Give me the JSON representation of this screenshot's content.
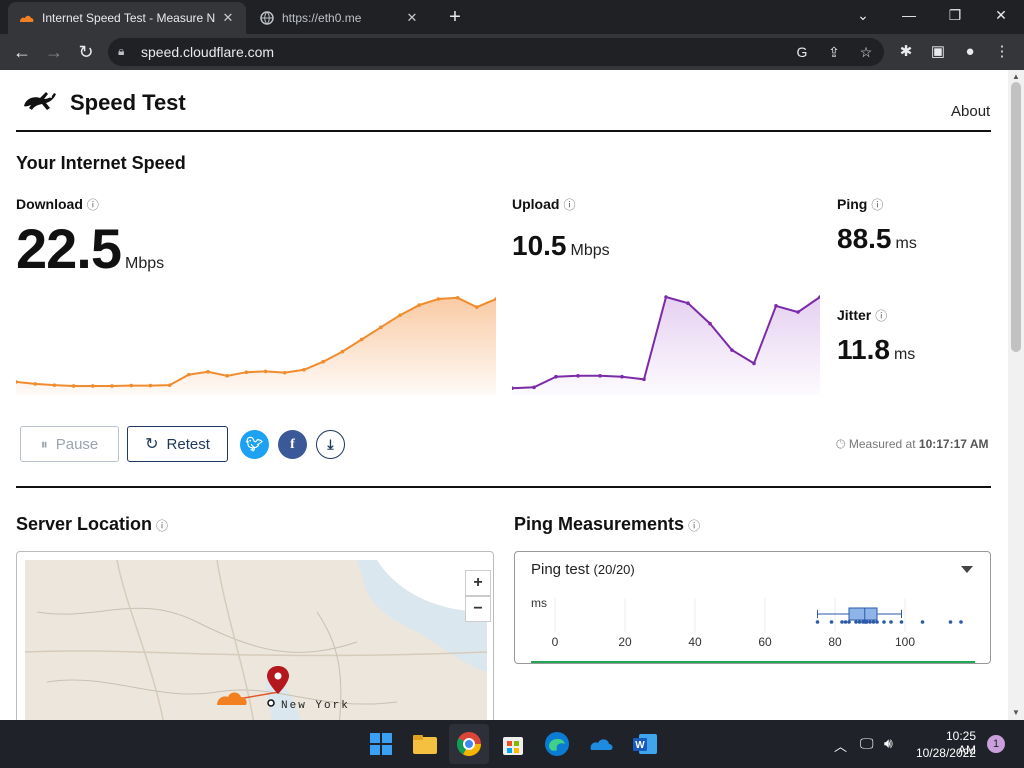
{
  "browser": {
    "tabs": [
      {
        "title": "Internet Speed Test - Measure N",
        "icon": "cloudflare-icon",
        "active": true
      },
      {
        "title": "https://eth0.me",
        "icon": "globe-icon",
        "active": false
      }
    ],
    "url": "speed.cloudflare.com"
  },
  "site": {
    "title": "Speed Test",
    "nav_about": "About"
  },
  "speed": {
    "heading": "Your Internet Speed",
    "download": {
      "label": "Download",
      "value": "22.5",
      "unit": "Mbps"
    },
    "upload": {
      "label": "Upload",
      "value": "10.5",
      "unit": "Mbps"
    },
    "ping": {
      "label": "Ping",
      "value": "88.5",
      "unit": "ms"
    },
    "jitter": {
      "label": "Jitter",
      "value": "11.8",
      "unit": "ms"
    },
    "pause_label": "Pause",
    "retest_label": "Retest",
    "measured_prefix": "Measured at",
    "measured_time": "10:17:17 AM"
  },
  "server": {
    "heading": "Server Location",
    "city": "New York"
  },
  "ping_measurements": {
    "heading": "Ping Measurements",
    "select_label": "Ping test",
    "select_count": "(20/20)",
    "unit_label": "ms",
    "ticks": [
      "0",
      "20",
      "40",
      "60",
      "80",
      "100"
    ]
  },
  "taskbar": {
    "time": "10:25 AM",
    "date": "10/28/2022",
    "notification_count": "1"
  },
  "colors": {
    "download_line": "#f08c2e",
    "upload_line": "#7b2aa8",
    "twitter": "#1da1f2",
    "facebook": "#3b5998",
    "accent_green": "#22a855"
  },
  "chart_data": [
    {
      "type": "area",
      "title": "Download",
      "x": [
        0,
        1,
        2,
        3,
        4,
        5,
        6,
        7,
        8,
        9,
        10,
        11,
        12,
        13,
        14,
        15,
        16,
        17,
        18,
        19,
        20,
        21,
        22,
        23,
        24,
        25
      ],
      "values": [
        2.0,
        1.5,
        1.2,
        1.0,
        1.0,
        1.0,
        1.1,
        1.1,
        1.2,
        3.8,
        4.5,
        3.5,
        4.4,
        4.6,
        4.3,
        5.0,
        7.0,
        9.5,
        12.5,
        15.5,
        18.5,
        21.0,
        22.5,
        22.8,
        20.5,
        22.5
      ],
      "ylim": [
        0,
        23
      ]
    },
    {
      "type": "area",
      "title": "Upload",
      "x": [
        0,
        1,
        2,
        3,
        4,
        5,
        6,
        7,
        8,
        9,
        10,
        11,
        12,
        13,
        14
      ],
      "values": [
        0.2,
        0.3,
        1.5,
        1.6,
        1.6,
        1.5,
        1.2,
        10.5,
        9.8,
        7.5,
        4.5,
        3.0,
        9.5,
        8.8,
        10.5
      ],
      "ylim": [
        0,
        10.5
      ]
    },
    {
      "type": "scatter",
      "title": "Ping test",
      "xlabel": "ms",
      "xlim": [
        0,
        120
      ],
      "ticks": [
        0,
        20,
        40,
        60,
        80,
        100
      ],
      "points": [
        75,
        79,
        82,
        83,
        84,
        86,
        87,
        88,
        88.5,
        89,
        89,
        90,
        91,
        92,
        94,
        96,
        99,
        105,
        113,
        116
      ],
      "box": {
        "whisker_low": 75,
        "q1": 84,
        "median": 88.5,
        "q3": 92,
        "whisker_high": 99
      }
    }
  ]
}
